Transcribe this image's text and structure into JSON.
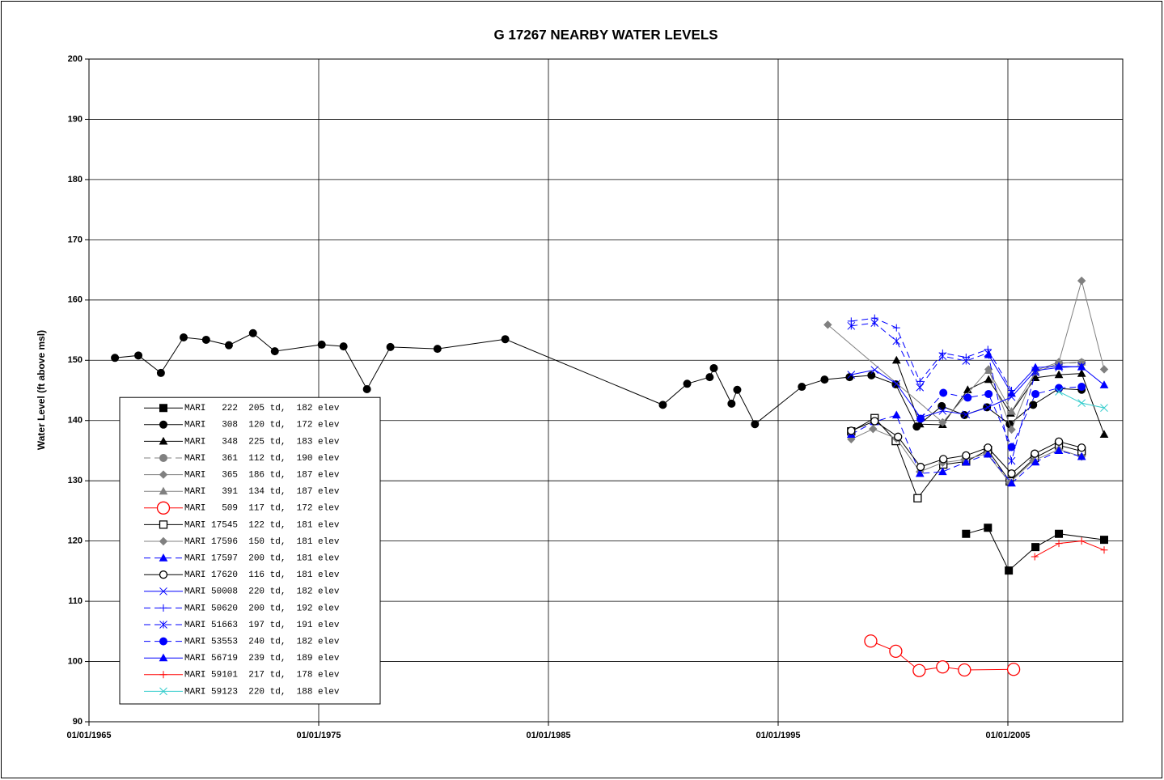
{
  "chart_data": {
    "type": "line",
    "title": "G 17267 NEARBY WATER LEVELS",
    "y_label": "Water Level (ft above msl)",
    "xlim": [
      1965,
      2010
    ],
    "xticks": [
      {
        "value": 1965,
        "label": "01/01/1965"
      },
      {
        "value": 1975,
        "label": "01/01/1975"
      },
      {
        "value": 1985,
        "label": "01/01/1985"
      },
      {
        "value": 1995,
        "label": "01/01/1995"
      },
      {
        "value": 2005,
        "label": "01/01/2005"
      }
    ],
    "ylim": [
      90,
      200
    ],
    "yticks": [
      90,
      100,
      110,
      120,
      130,
      140,
      150,
      160,
      170,
      180,
      190,
      200
    ],
    "grid": true,
    "legend": "lower left",
    "series": [
      {
        "name": "MARI   222  205 td,  182 elev",
        "color": "#000000",
        "marker": "square",
        "dash": false,
        "x": [
          2003.18,
          2004.13,
          2005.04,
          2006.2,
          2007.22,
          2009.19
        ],
        "values": [
          121.2,
          122.2,
          115.1,
          119.0,
          121.2,
          120.2
        ]
      },
      {
        "name": "MARI   308  120 td,  172 elev",
        "color": "#000000",
        "marker": "circle",
        "dash": false,
        "x": [
          1966.13,
          1967.15,
          1968.13,
          1969.12,
          1970.1,
          1971.09,
          1972.14,
          1973.09,
          1975.13,
          1976.08,
          1977.1,
          1978.12,
          1980.17,
          1983.12,
          1989.98,
          1991.04,
          1992.02,
          1992.2,
          1992.97,
          1993.22,
          1993.99,
          1996.03,
          1997.02,
          1998.11,
          1999.06,
          2000.12,
          2001.03,
          2002.12,
          2003.11,
          2004.09,
          2005.08,
          2006.1,
          2007.22,
          2008.21
        ],
        "values": [
          150.4,
          150.8,
          147.9,
          153.8,
          153.4,
          152.5,
          154.5,
          151.5,
          152.6,
          152.3,
          145.2,
          152.2,
          151.9,
          153.5,
          142.6,
          146.1,
          147.2,
          148.7,
          142.8,
          145.1,
          139.4,
          145.6,
          146.8,
          147.2,
          147.5,
          146.0,
          139.0,
          142.4,
          140.9,
          142.2,
          139.4,
          142.6,
          145.3,
          145.1
        ]
      },
      {
        "name": "MARI   348  225 td,  183 elev",
        "color": "#000000",
        "marker": "triangle",
        "dash": false,
        "x": [
          2000.15,
          2001.17,
          2002.16,
          2003.25,
          2004.16,
          2005.12,
          2006.2,
          2007.22,
          2008.21,
          2009.19
        ],
        "values": [
          150.0,
          139.4,
          139.3,
          145.1,
          146.8,
          141.2,
          147.1,
          147.6,
          147.8,
          137.7
        ]
      },
      {
        "name": "MARI   361  112 td,  190 elev",
        "color": "#808080",
        "marker": "circle",
        "dash": true,
        "x": [
          2007.22,
          2008.21
        ],
        "values": [
          149.5,
          149.6
        ]
      },
      {
        "name": "MARI   365  186 td,  187 elev",
        "color": "#808080",
        "marker": "diamond",
        "dash": false,
        "x": [
          1997.16,
          2002.16,
          2004.16,
          2005.16,
          2006.2,
          2007.22,
          2008.21,
          2009.19
        ],
        "values": [
          155.9,
          139.7,
          148.5,
          138.5,
          148.3,
          149.7,
          163.2,
          148.5
        ]
      },
      {
        "name": "MARI   391  134 td,  187 elev",
        "color": "#808080",
        "marker": "triangle",
        "dash": false,
        "x": [
          2004.16,
          2005.16,
          2006.2,
          2007.22,
          2008.21
        ],
        "values": [
          148.3,
          141.5,
          148.0,
          149.5,
          149.7
        ]
      },
      {
        "name": "MARI   509  117 td,  172 elev",
        "color": "#ff0000",
        "marker": "open-circle",
        "dash": false,
        "x": [
          1999.03,
          2000.12,
          2001.14,
          2002.16,
          2003.11,
          2005.25
        ],
        "values": [
          103.4,
          101.7,
          98.5,
          99.1,
          98.6,
          98.7
        ]
      },
      {
        "name": "MARI 17545  122 td,  181 elev",
        "color": "#000000",
        "marker": "open-square",
        "dash": false,
        "x": [
          1998.18,
          1999.2,
          2000.12,
          2001.07,
          2002.19,
          2003.18,
          2004.13,
          2005.08,
          2006.17,
          2007.22,
          2008.21
        ],
        "values": [
          138.2,
          140.4,
          136.6,
          127.1,
          132.7,
          133.2,
          135.1,
          129.9,
          133.8,
          135.9,
          134.9
        ]
      },
      {
        "name": "MARI 17596  150 td,  181 elev",
        "color": "#808080",
        "marker": "diamond",
        "dash": false,
        "x": [
          1998.18,
          1999.13,
          2000.15,
          2001.17,
          2002.16,
          2003.11,
          2004.09,
          2005.08,
          2006.1,
          2007.22,
          2008.21
        ],
        "values": [
          136.9,
          138.6,
          137.0,
          131.5,
          133.0,
          133.5,
          134.5,
          129.7,
          133.3,
          135.2,
          134.0
        ]
      },
      {
        "name": "MARI 17597  200 td,  181 elev",
        "color": "#0000ff",
        "marker": "triangle",
        "dash": true,
        "x": [
          1998.18,
          1999.2,
          2000.15,
          2001.17,
          2002.16,
          2003.18,
          2004.13,
          2005.16,
          2006.2,
          2007.22,
          2008.21
        ],
        "values": [
          137.7,
          139.8,
          140.9,
          131.2,
          131.5,
          133.1,
          134.4,
          129.6,
          133.1,
          135.0,
          134.0
        ]
      },
      {
        "name": "MARI 17620  116 td,  181 elev",
        "color": "#000000",
        "marker": "open-circle",
        "dash": false,
        "x": [
          1998.18,
          1999.2,
          2000.22,
          2001.2,
          2002.19,
          2003.18,
          2004.13,
          2005.16,
          2006.17,
          2007.22,
          2008.21
        ],
        "values": [
          138.3,
          139.9,
          137.3,
          132.3,
          133.6,
          134.2,
          135.5,
          131.2,
          134.5,
          136.5,
          135.5
        ]
      },
      {
        "name": "MARI 50008  220 td,  182 elev",
        "color": "#0000ff",
        "marker": "x",
        "dash": false,
        "x": [
          1998.18,
          1999.2,
          2000.15,
          2001.2,
          2002.16,
          2003.18,
          2004.13,
          2005.16,
          2006.2,
          2007.22,
          2008.21
        ],
        "values": [
          147.6,
          148.4,
          146.1,
          140.5,
          141.6,
          141.0,
          142.2,
          143.9,
          148.3,
          148.8,
          149.0
        ]
      },
      {
        "name": "MARI 50620  200 td,  192 elev",
        "color": "#0000ff",
        "marker": "plus",
        "dash": true,
        "x": [
          1998.18,
          1999.2,
          2000.15,
          2001.17,
          2002.16,
          2003.18,
          2004.13,
          2005.16
        ],
        "values": [
          156.5,
          157.0,
          155.4,
          146.5,
          151.2,
          150.5,
          151.8,
          145.0
        ]
      },
      {
        "name": "MARI 51663  197 td,  191 elev",
        "color": "#0000ff",
        "marker": "asterisk",
        "dash": true,
        "x": [
          1998.18,
          1999.2,
          2000.15,
          2001.17,
          2002.16,
          2003.18,
          2004.13,
          2005.16,
          2006.2
        ],
        "values": [
          155.7,
          156.2,
          153.2,
          145.5,
          150.7,
          149.9,
          151.2,
          133.3,
          148.0
        ]
      },
      {
        "name": "MARI 53553  240 td,  182 elev",
        "color": "#0000ff",
        "marker": "circle",
        "dash": true,
        "x": [
          2001.2,
          2002.19,
          2003.25,
          2004.16,
          2005.16,
          2006.2,
          2007.22,
          2008.21
        ],
        "values": [
          140.3,
          144.6,
          143.8,
          144.4,
          135.6,
          144.4,
          145.4,
          145.6
        ]
      },
      {
        "name": "MARI 56719  239 td,  189 elev",
        "color": "#0000ff",
        "marker": "triangle",
        "dash": false,
        "x": [
          2004.16,
          2005.16,
          2006.2,
          2007.22,
          2008.21,
          2009.19
        ],
        "values": [
          150.9,
          144.5,
          148.8,
          149.0,
          148.9,
          145.9
        ]
      },
      {
        "name": "MARI 59101  217 td,  178 elev",
        "color": "#ff0000",
        "marker": "plus",
        "dash": false,
        "x": [
          2006.17,
          2007.22,
          2008.21,
          2009.19
        ],
        "values": [
          117.4,
          119.6,
          120.0,
          118.5
        ]
      },
      {
        "name": "MARI 59123  220 td,  188 elev",
        "color": "#33cccc",
        "marker": "x",
        "dash": false,
        "x": [
          2007.22,
          2008.21,
          2009.19
        ],
        "values": [
          144.8,
          142.9,
          142.1
        ]
      }
    ]
  }
}
